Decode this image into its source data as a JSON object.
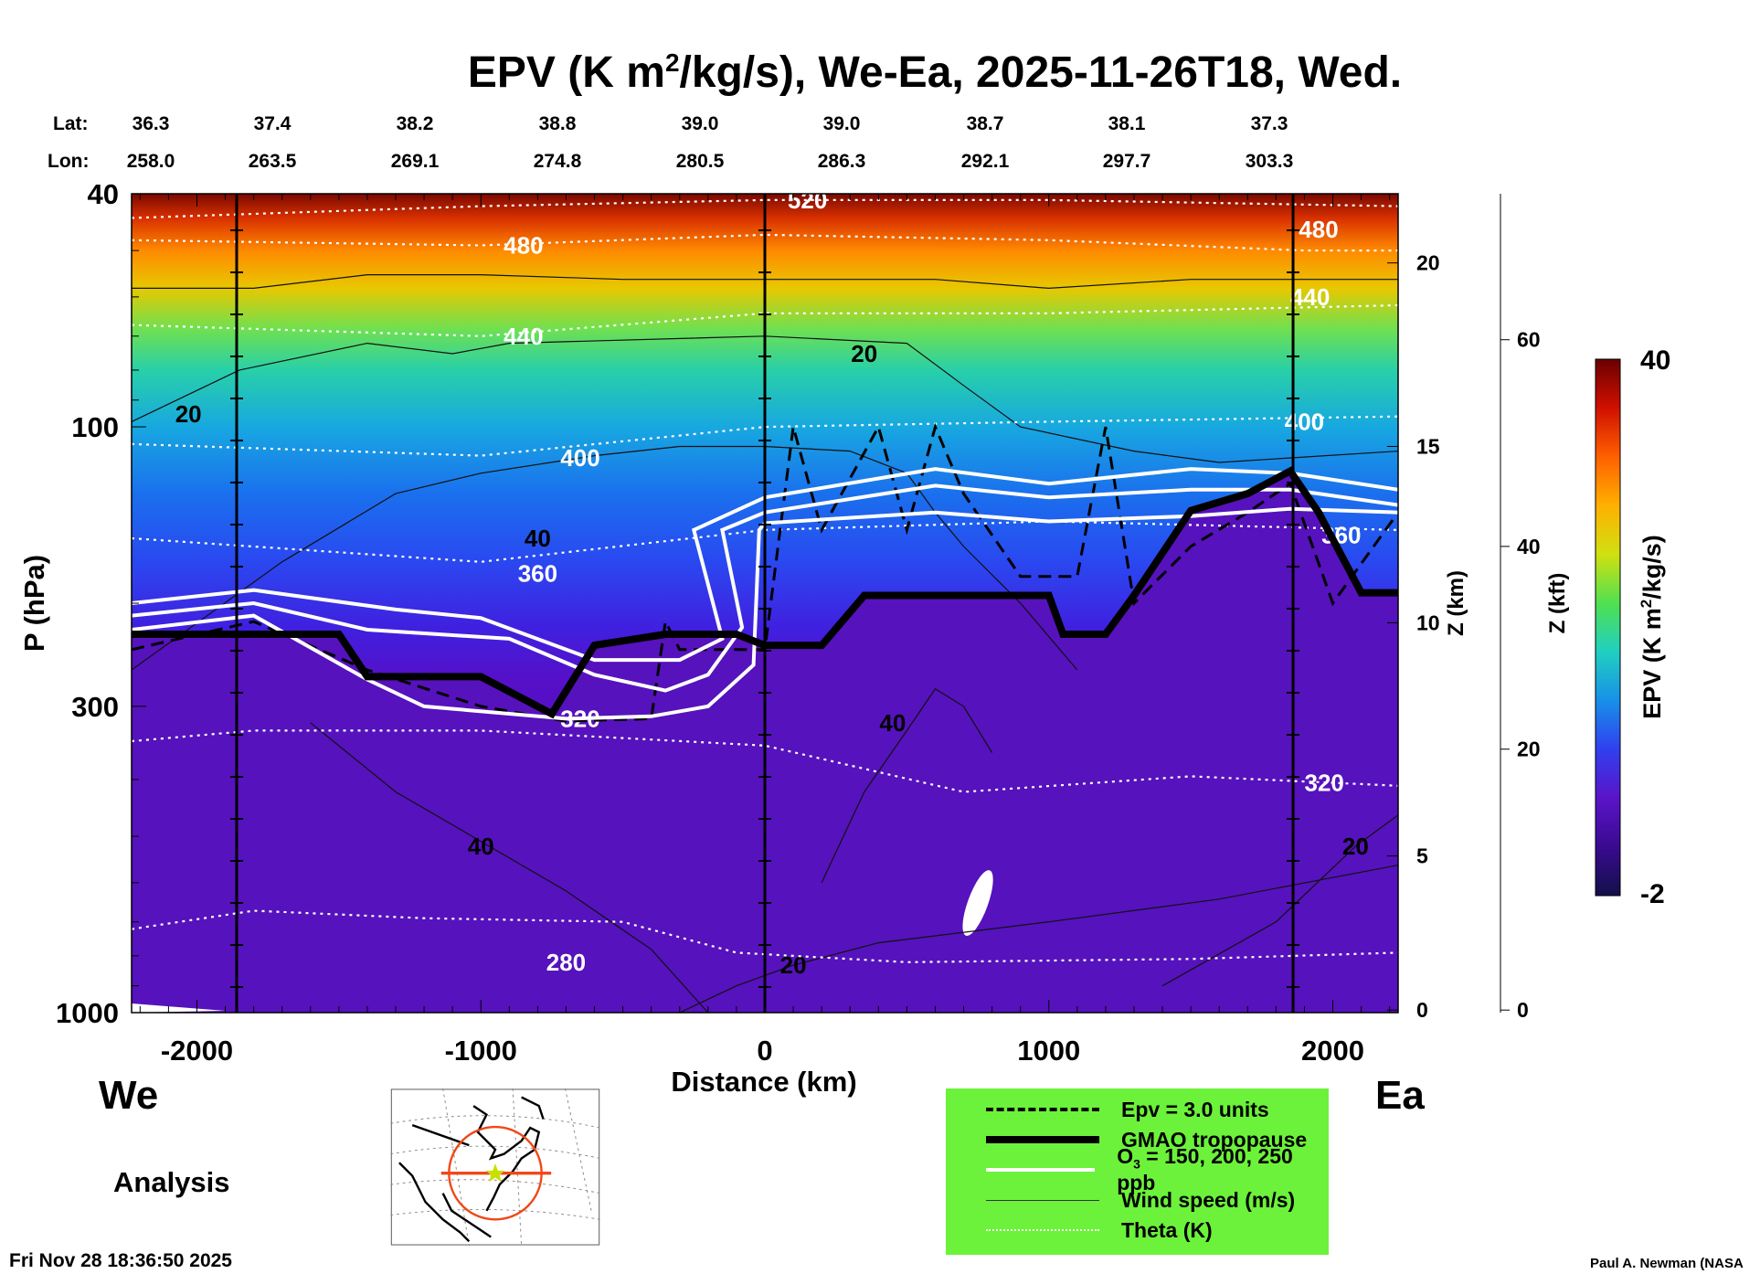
{
  "title_parts": {
    "pre": "EPV (K m",
    "sup": "2",
    "post": "/kg/s), We-Ea, 2025-11-26T18, Wed."
  },
  "lat_label": "Lat:",
  "lon_label": "Lon:",
  "lats": [
    "36.3",
    "37.4",
    "38.2",
    "38.8",
    "39.0",
    "39.0",
    "38.7",
    "38.1",
    "37.3"
  ],
  "lons": [
    "258.0",
    "263.5",
    "269.1",
    "274.8",
    "280.5",
    "286.3",
    "292.1",
    "297.7",
    "303.3"
  ],
  "west_label": "We",
  "east_label": "Ea",
  "analysis_label": "Analysis",
  "timestamp": "Fri Nov 28 18:36:50 2025",
  "credit": "Paul A. Newman (NASA",
  "legend": [
    {
      "style": "dashed",
      "label": "Epv = 3.0 units"
    },
    {
      "style": "thick",
      "label": "GMAO tropopause"
    },
    {
      "style": "white",
      "label_pre": "O",
      "label_sub": "3",
      "label_post": " = 150, 200, 250 ppb"
    },
    {
      "style": "thin",
      "label": "Wind speed (m/s)"
    },
    {
      "style": "dotted",
      "label": "Theta (K)"
    }
  ],
  "chart_data": {
    "type": "heatmap",
    "title": "EPV (K m2/kg/s), We-Ea, 2025-11-26T18, Wed.",
    "xlabel": "Distance (km)",
    "ylabel": "P (hPa)",
    "y2label": "Z (km)",
    "y3label": "Z (kft)",
    "xlim": [
      -2230,
      2230
    ],
    "ylim": [
      1000,
      40
    ],
    "yscale": "log",
    "x_ticks": [
      -2000,
      -1000,
      0,
      1000,
      2000
    ],
    "x_tick_labels": [
      "-2000",
      "-1000",
      "0",
      "1000",
      "2000"
    ],
    "y_ticks": [
      40,
      100,
      300,
      1000
    ],
    "y_tick_labels": [
      "40",
      "100",
      "300",
      "1000"
    ],
    "zkm_ticks": [
      {
        "label": "20",
        "p": 52.5
      },
      {
        "label": "15",
        "p": 108
      },
      {
        "label": "10",
        "p": 216
      },
      {
        "label": "5",
        "p": 540
      },
      {
        "label": "0",
        "p": 990
      }
    ],
    "zkft_ticks": [
      {
        "label": "60",
        "p": 71
      },
      {
        "label": "40",
        "p": 160
      },
      {
        "label": "20",
        "p": 355
      },
      {
        "label": "0",
        "p": 990
      }
    ],
    "section_markers_km": [
      -1860,
      0,
      1860
    ],
    "colorbar": {
      "label": "EPV (K m2/kg/s)",
      "label_pre": "EPV (K m",
      "label_sup": "2",
      "label_post": "/kg/s)",
      "min": -2,
      "max": 40,
      "min_label": "-2",
      "max_label": "40",
      "colors": [
        "#12104a",
        "#3a0a90",
        "#5a14c8",
        "#3040f0",
        "#1890e8",
        "#20d0c0",
        "#50e050",
        "#d0e010",
        "#ffb000",
        "#ff6000",
        "#d01000",
        "#6a0000"
      ]
    },
    "field_profile": [
      {
        "p": 40,
        "color": "#7a0800"
      },
      {
        "p": 44,
        "color": "#d83000"
      },
      {
        "p": 50,
        "color": "#ff8a00"
      },
      {
        "p": 58,
        "color": "#e8c800"
      },
      {
        "p": 68,
        "color": "#70e050"
      },
      {
        "p": 80,
        "color": "#28d0a8"
      },
      {
        "p": 100,
        "color": "#18a8e0"
      },
      {
        "p": 130,
        "color": "#1a70ee"
      },
      {
        "p": 170,
        "color": "#2a48f0"
      },
      {
        "p": 220,
        "color": "#4020e0"
      },
      {
        "p": 270,
        "color": "#5510c8"
      },
      {
        "p": 600,
        "color": "#5412b8"
      },
      {
        "p": 1000,
        "color": "#4c0ca8"
      }
    ],
    "below_tropopause_color": "#5612bc",
    "tropopause": [
      [
        -2230,
        226
      ],
      [
        -1500,
        226
      ],
      [
        -1400,
        267
      ],
      [
        -1000,
        267
      ],
      [
        -750,
        309
      ],
      [
        -600,
        236
      ],
      [
        -350,
        226
      ],
      [
        -100,
        226
      ],
      [
        0,
        236
      ],
      [
        200,
        236
      ],
      [
        350,
        194
      ],
      [
        1000,
        194
      ],
      [
        1050,
        226
      ],
      [
        1200,
        226
      ],
      [
        1300,
        194
      ],
      [
        1500,
        139
      ],
      [
        1700,
        130
      ],
      [
        1850,
        119
      ],
      [
        1950,
        140
      ],
      [
        2100,
        192
      ],
      [
        2230,
        192
      ]
    ],
    "o3_contours": [
      {
        "ppb": 150,
        "points": [
          [
            -2230,
            200
          ],
          [
            -1800,
            190
          ],
          [
            -1300,
            205
          ],
          [
            -1000,
            212
          ],
          [
            -600,
            250
          ],
          [
            -300,
            250
          ],
          [
            -150,
            230
          ],
          [
            -250,
            150
          ],
          [
            0,
            132
          ],
          [
            600,
            118
          ],
          [
            1000,
            125
          ],
          [
            1500,
            118
          ],
          [
            1850,
            120
          ],
          [
            2230,
            128
          ]
        ]
      },
      {
        "ppb": 200,
        "points": [
          [
            -2230,
            210
          ],
          [
            -1800,
            200
          ],
          [
            -1400,
            222
          ],
          [
            -900,
            230
          ],
          [
            -600,
            265
          ],
          [
            -350,
            282
          ],
          [
            -200,
            265
          ],
          [
            -80,
            220
          ],
          [
            -150,
            150
          ],
          [
            0,
            140
          ],
          [
            600,
            126
          ],
          [
            1000,
            132
          ],
          [
            1500,
            128
          ],
          [
            1850,
            128
          ],
          [
            2230,
            136
          ]
        ]
      },
      {
        "ppb": 250,
        "points": [
          [
            -2230,
            222
          ],
          [
            -1800,
            210
          ],
          [
            -1400,
            270
          ],
          [
            -1200,
            300
          ],
          [
            -700,
            315
          ],
          [
            -400,
            312
          ],
          [
            -200,
            300
          ],
          [
            -40,
            255
          ],
          [
            -20,
            150
          ],
          [
            0,
            146
          ],
          [
            600,
            140
          ],
          [
            1000,
            145
          ],
          [
            1500,
            142
          ],
          [
            1850,
            138
          ],
          [
            2230,
            140
          ]
        ]
      }
    ],
    "epv3_contour": [
      [
        -2230,
        240
      ],
      [
        -1800,
        215
      ],
      [
        -1400,
        260
      ],
      [
        -1000,
        300
      ],
      [
        -700,
        318
      ],
      [
        -400,
        315
      ],
      [
        -350,
        215
      ],
      [
        -300,
        240
      ],
      [
        0,
        240
      ],
      [
        100,
        100
      ],
      [
        200,
        150
      ],
      [
        400,
        100
      ],
      [
        500,
        150
      ],
      [
        600,
        100
      ],
      [
        700,
        130
      ],
      [
        900,
        180
      ],
      [
        1100,
        180
      ],
      [
        1200,
        100
      ],
      [
        1300,
        200
      ],
      [
        1500,
        160
      ],
      [
        1700,
        140
      ],
      [
        1850,
        125
      ],
      [
        2000,
        200
      ],
      [
        2230,
        140
      ]
    ],
    "theta_contours": [
      {
        "K": 520,
        "label": "520",
        "label_at": [
          150,
          41
        ],
        "points": [
          [
            -2230,
            44
          ],
          [
            -1000,
            42
          ],
          [
            0,
            41
          ],
          [
            1000,
            41
          ],
          [
            2230,
            42
          ]
        ]
      },
      {
        "K": 480,
        "label": "480",
        "label_at": [
          -850,
          49
        ],
        "points": [
          [
            -2230,
            48
          ],
          [
            -1000,
            49
          ],
          [
            0,
            47
          ],
          [
            1000,
            48
          ],
          [
            1900,
            50
          ],
          [
            2230,
            50
          ]
        ],
        "label2": "480",
        "label2_at": [
          1950,
          46
        ]
      },
      {
        "K": 440,
        "label": "440",
        "label_at": [
          -850,
          70
        ],
        "points": [
          [
            -2230,
            67
          ],
          [
            -1000,
            70
          ],
          [
            0,
            64
          ],
          [
            1000,
            64
          ],
          [
            2230,
            62
          ]
        ],
        "label2": "440",
        "label2_at": [
          1920,
          60
        ]
      },
      {
        "K": 400,
        "label": "400",
        "label_at": [
          -650,
          113
        ],
        "points": [
          [
            -2230,
            107
          ],
          [
            -1000,
            112
          ],
          [
            0,
            100
          ],
          [
            1000,
            98
          ],
          [
            2230,
            96
          ]
        ],
        "label2": "400",
        "label2_at": [
          1900,
          98
        ]
      },
      {
        "K": 360,
        "label": "360",
        "label_at": [
          -800,
          178
        ],
        "points": [
          [
            -2230,
            155
          ],
          [
            -1000,
            170
          ],
          [
            0,
            150
          ],
          [
            1000,
            145
          ],
          [
            2230,
            150
          ]
        ],
        "label2": "360",
        "label2_at": [
          2030,
          153
        ]
      },
      {
        "K": 320,
        "label": "320",
        "label_at": [
          -650,
          315
        ],
        "points": [
          [
            -2230,
            344
          ],
          [
            -1800,
            330
          ],
          [
            -1000,
            330
          ],
          [
            0,
            350
          ],
          [
            700,
            420
          ],
          [
            1500,
            395
          ],
          [
            2230,
            410
          ]
        ],
        "label2": "320",
        "label2_at": [
          1970,
          405
        ]
      },
      {
        "K": 280,
        "label": "280",
        "label_at": [
          -700,
          820
        ],
        "points": [
          [
            -2230,
            720
          ],
          [
            -1800,
            670
          ],
          [
            -1200,
            690
          ],
          [
            -500,
            700
          ],
          [
            -100,
            790
          ],
          [
            500,
            820
          ],
          [
            1500,
            810
          ],
          [
            2230,
            790
          ]
        ]
      }
    ],
    "wind_contours": [
      {
        "label": "20",
        "label_at": [
          -2030,
          95
        ],
        "points": [
          [
            -2230,
            98
          ],
          [
            -1850,
            80
          ],
          [
            -1400,
            72
          ],
          [
            -1100,
            75
          ],
          [
            -900,
            72
          ],
          [
            0,
            70
          ],
          [
            500,
            72
          ],
          [
            700,
            85
          ],
          [
            900,
            100
          ],
          [
            1300,
            110
          ],
          [
            1600,
            115
          ],
          [
            2230,
            110
          ]
        ]
      },
      {
        "label": "20",
        "label_at": [
          350,
          75
        ],
        "points": [
          [
            -2230,
            58
          ],
          [
            -1800,
            58
          ],
          [
            -1400,
            55
          ],
          [
            -1000,
            55
          ],
          [
            -500,
            56
          ],
          [
            0,
            56
          ],
          [
            600,
            56
          ],
          [
            1000,
            58
          ],
          [
            1500,
            56
          ],
          [
            2230,
            56
          ]
        ]
      },
      {
        "label": "40",
        "label_at": [
          -800,
          155
        ],
        "points": [
          [
            -2230,
            260
          ],
          [
            -1700,
            170
          ],
          [
            -1300,
            130
          ],
          [
            -1000,
            120
          ],
          [
            -600,
            112
          ],
          [
            -300,
            108
          ],
          [
            0,
            108
          ],
          [
            300,
            110
          ],
          [
            500,
            120
          ],
          [
            600,
            140
          ],
          [
            700,
            160
          ],
          [
            900,
            200
          ],
          [
            1100,
            260
          ]
        ]
      },
      {
        "label": "40",
        "label_at": [
          450,
          320
        ],
        "points": [
          [
            200,
            600
          ],
          [
            350,
            420
          ],
          [
            500,
            330
          ],
          [
            600,
            280
          ],
          [
            700,
            300
          ],
          [
            800,
            360
          ]
        ]
      },
      {
        "label": "40",
        "label_at": [
          -1000,
          520
        ],
        "points": [
          [
            -1600,
            320
          ],
          [
            -1300,
            420
          ],
          [
            -1000,
            510
          ],
          [
            -700,
            620
          ],
          [
            -400,
            780
          ],
          [
            -200,
            1000
          ]
        ]
      },
      {
        "label": "20",
        "label_at": [
          100,
          830
        ],
        "points": [
          [
            -300,
            1000
          ],
          [
            -100,
            900
          ],
          [
            100,
            830
          ],
          [
            400,
            760
          ],
          [
            1000,
            700
          ],
          [
            1600,
            640
          ],
          [
            2230,
            560
          ]
        ]
      },
      {
        "label": "20",
        "label_at": [
          2080,
          520
        ],
        "points": [
          [
            1400,
            900
          ],
          [
            1800,
            700
          ],
          [
            2080,
            520
          ],
          [
            2230,
            460
          ]
        ]
      }
    ],
    "annotations": [
      "We",
      "Ea",
      "Analysis"
    ]
  }
}
